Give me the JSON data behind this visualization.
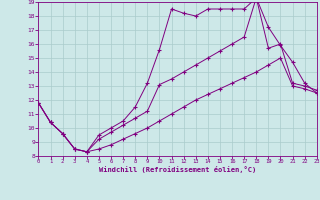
{
  "xlabel": "Windchill (Refroidissement éolien,°C)",
  "bg_color": "#cde8e8",
  "line_color": "#800080",
  "grid_color": "#aacccc",
  "xlim": [
    0,
    23
  ],
  "ylim": [
    8,
    19
  ],
  "xticks": [
    0,
    1,
    2,
    3,
    4,
    5,
    6,
    7,
    8,
    9,
    10,
    11,
    12,
    13,
    14,
    15,
    16,
    17,
    18,
    19,
    20,
    21,
    22,
    23
  ],
  "yticks": [
    8,
    9,
    10,
    11,
    12,
    13,
    14,
    15,
    16,
    17,
    18,
    19
  ],
  "line1_x": [
    0,
    1,
    2,
    3,
    4,
    5,
    6,
    7,
    8,
    9,
    10,
    11,
    12,
    13,
    14,
    15,
    16,
    17,
    18,
    19,
    20,
    21,
    22,
    23
  ],
  "line1_y": [
    11.8,
    10.4,
    9.6,
    8.5,
    8.3,
    9.5,
    10.0,
    10.5,
    11.5,
    13.2,
    15.6,
    18.5,
    18.2,
    18.0,
    18.5,
    18.5,
    18.5,
    18.5,
    19.3,
    17.2,
    15.9,
    14.7,
    13.2,
    12.5
  ],
  "line2_x": [
    0,
    1,
    2,
    3,
    4,
    5,
    6,
    7,
    8,
    9,
    10,
    11,
    12,
    13,
    14,
    15,
    16,
    17,
    18,
    19,
    20,
    21,
    22,
    23
  ],
  "line2_y": [
    11.8,
    10.4,
    9.6,
    8.5,
    8.3,
    9.2,
    9.7,
    10.2,
    10.7,
    11.2,
    13.1,
    13.5,
    14.0,
    14.5,
    15.0,
    15.5,
    16.0,
    16.5,
    19.3,
    15.7,
    16.0,
    13.2,
    13.0,
    12.7
  ],
  "line3_x": [
    0,
    1,
    2,
    3,
    4,
    5,
    6,
    7,
    8,
    9,
    10,
    11,
    12,
    13,
    14,
    15,
    16,
    17,
    18,
    19,
    20,
    21,
    22,
    23
  ],
  "line3_y": [
    11.8,
    10.4,
    9.6,
    8.5,
    8.3,
    8.5,
    8.8,
    9.2,
    9.6,
    10.0,
    10.5,
    11.0,
    11.5,
    12.0,
    12.4,
    12.8,
    13.2,
    13.6,
    14.0,
    14.5,
    15.0,
    13.0,
    12.8,
    12.5
  ]
}
